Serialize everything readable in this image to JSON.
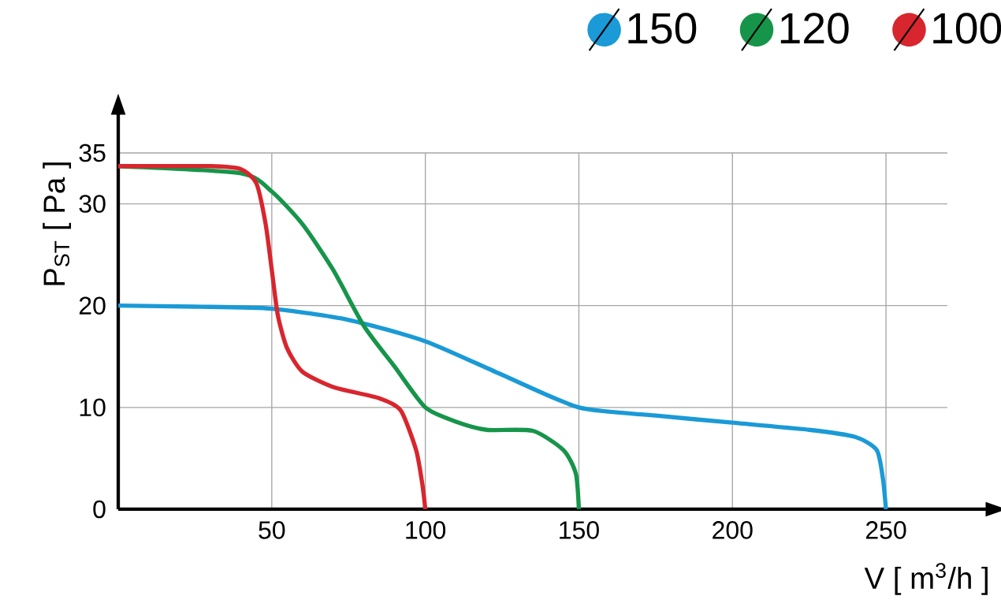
{
  "chart_data": {
    "type": "line",
    "xlabel": "V [ m$^{3}$/h ]",
    "ylabel": "P$_{ST}$ [ Pa ]",
    "xlim": [
      0,
      270
    ],
    "ylim": [
      0,
      35
    ],
    "xticks": [
      50,
      100,
      150,
      200,
      250
    ],
    "yticks": [
      0,
      10,
      20,
      30,
      35
    ],
    "grid": true,
    "legend": "top right",
    "series": [
      {
        "name": "150",
        "color": "#1a9ad6",
        "x": [
          0,
          25,
          50,
          75,
          100,
          125,
          150,
          175,
          200,
          225,
          240,
          247,
          249,
          250
        ],
        "values": [
          20,
          19.9,
          19.7,
          18.6,
          16.5,
          13.2,
          10,
          9.2,
          8.5,
          7.8,
          7.1,
          5.8,
          3,
          0
        ]
      },
      {
        "name": "120",
        "color": "#16954a",
        "x": [
          0,
          30,
          40,
          50,
          60,
          70,
          80,
          90,
          100,
          110,
          120,
          135,
          145,
          149,
          150
        ],
        "values": [
          33.7,
          null,
          33,
          31.2,
          28,
          23.5,
          18,
          14,
          10,
          8.6,
          7.8,
          7.7,
          5.8,
          3.5,
          0
        ]
      },
      {
        "name": "100",
        "color": "#d8262e",
        "x": [
          0,
          30,
          40,
          45,
          48,
          50,
          52,
          55,
          60,
          70,
          85,
          92,
          97,
          99,
          100
        ],
        "values": [
          33.7,
          33.7,
          33.4,
          32,
          28,
          23.5,
          19,
          15.8,
          13.5,
          12,
          10.9,
          9.7,
          5.8,
          2.5,
          0
        ]
      }
    ]
  }
}
